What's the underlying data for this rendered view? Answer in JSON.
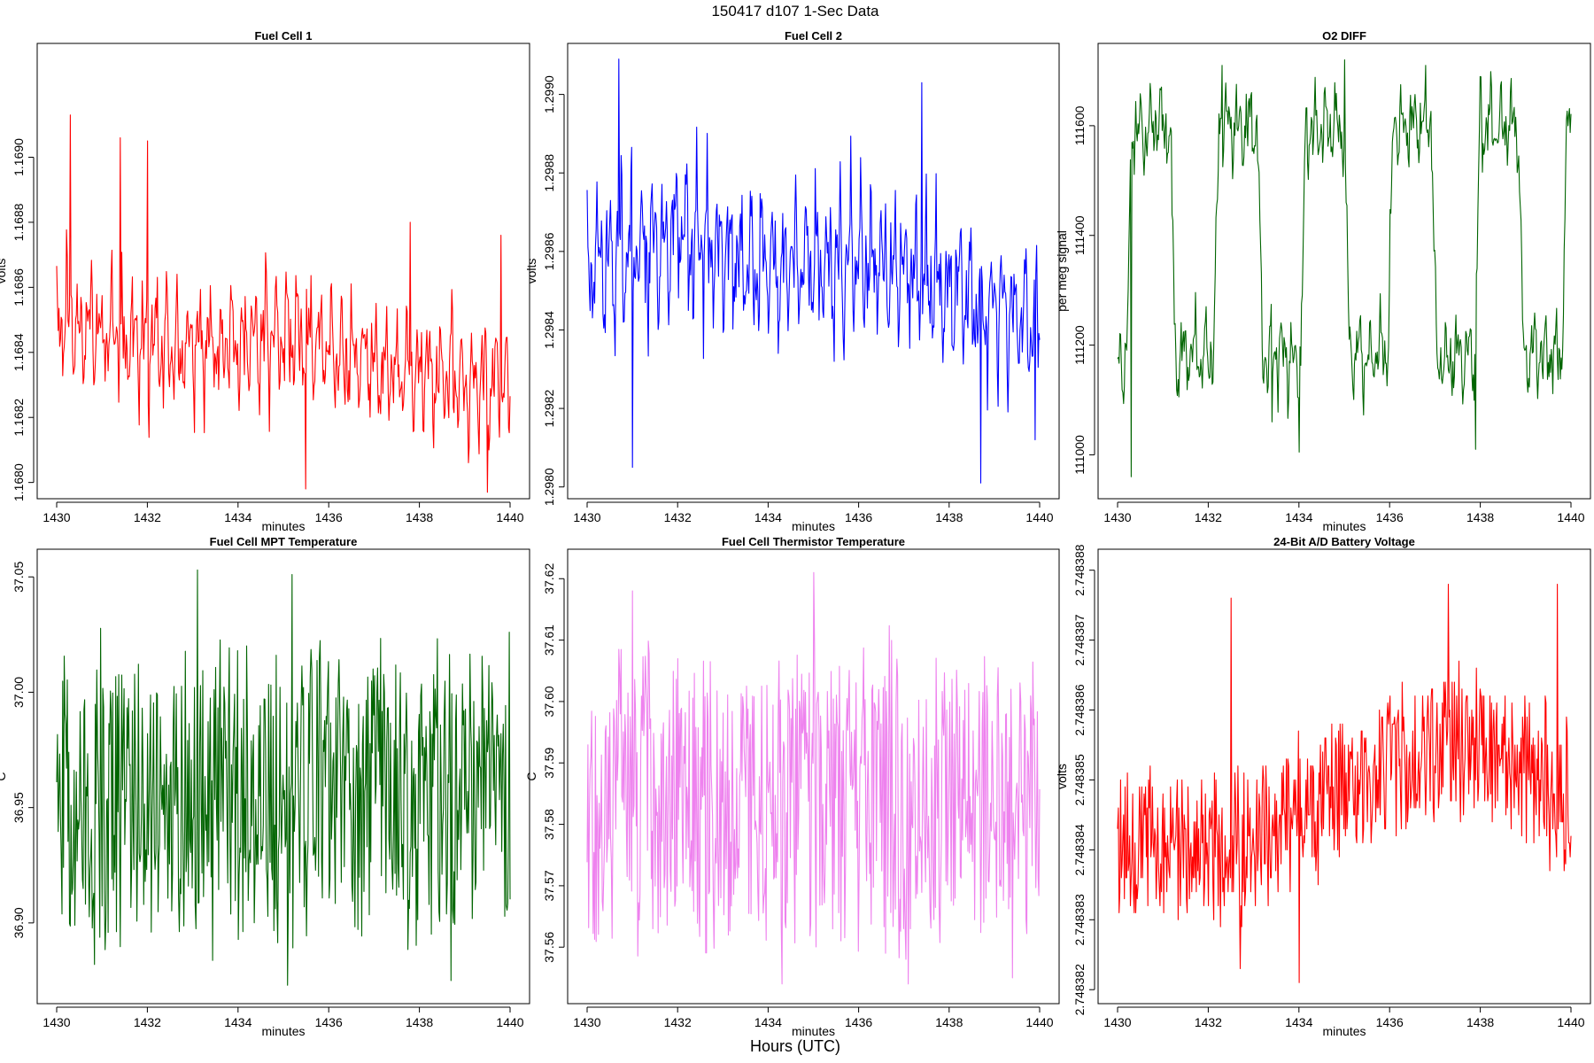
{
  "figure": {
    "title": "150417   d107   1-Sec Data",
    "xlabel": "Hours (UTC)"
  },
  "chart_data": [
    {
      "type": "line",
      "title": "Fuel Cell 1",
      "xlabel": "minutes",
      "ylabel": "volts",
      "color": "#ff0000",
      "xlim": [
        1430,
        1440
      ],
      "ylim": [
        1.16795,
        1.16935
      ],
      "xticks": [
        "1430",
        "1432",
        "1434",
        "1436",
        "1438",
        "1440"
      ],
      "yticks": [
        "1.1680",
        "1.1682",
        "1.1684",
        "1.1686",
        "1.1688",
        "1.1690"
      ],
      "seed": 11,
      "n": 600,
      "trend": [
        [
          0,
          1.1685
        ],
        [
          0.25,
          1.1684
        ],
        [
          0.5,
          1.16845
        ],
        [
          0.75,
          1.16835
        ],
        [
          1,
          1.1683
        ]
      ],
      "amp": 0.00022,
      "spikes": [
        [
          0.03,
          1.16913
        ],
        [
          0.14,
          1.16906
        ],
        [
          0.2,
          1.16905
        ],
        [
          0.55,
          1.16798
        ],
        [
          0.78,
          1.1688
        ],
        [
          0.95,
          1.16797
        ],
        [
          0.98,
          1.16876
        ]
      ],
      "ymin_clip": 1.16797,
      "ymax_clip": 1.16913
    },
    {
      "type": "line",
      "title": "Fuel Cell 2",
      "xlabel": "minutes",
      "ylabel": "volts",
      "color": "#0000ff",
      "xlim": [
        1430,
        1440
      ],
      "ylim": [
        1.29797,
        1.29913
      ],
      "xticks": [
        "1430",
        "1432",
        "1434",
        "1436",
        "1438",
        "1440"
      ],
      "yticks": [
        "1.2980",
        "1.2982",
        "1.2984",
        "1.2986",
        "1.2988",
        "1.2990"
      ],
      "seed": 23,
      "n": 600,
      "trend": [
        [
          0,
          1.29858
        ],
        [
          0.2,
          1.29865
        ],
        [
          0.4,
          1.29855
        ],
        [
          0.6,
          1.29858
        ],
        [
          0.8,
          1.2985
        ],
        [
          1,
          1.29842
        ]
      ],
      "amp": 0.00024,
      "spikes": [
        [
          0.07,
          1.29909
        ],
        [
          0.1,
          1.29805
        ],
        [
          0.87,
          1.29801
        ],
        [
          0.74,
          1.29903
        ],
        [
          0.99,
          1.29812
        ]
      ],
      "ymin_clip": 1.29801,
      "ymax_clip": 1.29909
    },
    {
      "type": "line",
      "title": "O2 DIFF",
      "xlabel": "minutes",
      "ylabel": "per meg signal",
      "color": "#006400",
      "xlim": [
        1430,
        1440
      ],
      "ylim": [
        110920,
        111750
      ],
      "xticks": [
        "1430",
        "1432",
        "1434",
        "1436",
        "1438",
        "1440"
      ],
      "yticks": [
        "111000",
        "111200",
        "111400",
        "111600"
      ],
      "seed": 37,
      "n": 600,
      "square": {
        "low": 111180,
        "high": 111600,
        "period": 0.192,
        "phase": 0.02,
        "duty": 0.5
      },
      "amp": 90,
      "spikes": [
        [
          0.03,
          110960
        ],
        [
          0.23,
          111710
        ],
        [
          0.5,
          111720
        ],
        [
          0.4,
          111005
        ],
        [
          0.68,
          111710
        ],
        [
          0.79,
          111010
        ],
        [
          0.34,
          111060
        ]
      ],
      "ymin_clip": 110960,
      "ymax_clip": 111720
    },
    {
      "type": "line",
      "title": "Fuel Cell MPT Temperature",
      "xlabel": "minutes",
      "ylabel": "C",
      "color": "#006400",
      "xlim": [
        1430,
        1440
      ],
      "ylim": [
        36.865,
        37.062
      ],
      "xticks": [
        "1430",
        "1432",
        "1434",
        "1436",
        "1438",
        "1440"
      ],
      "yticks": [
        "36.90",
        "36.95",
        "37.00",
        "37.05"
      ],
      "seed": 51,
      "n": 600,
      "trend": [
        [
          0,
          36.955
        ],
        [
          1,
          36.955
        ]
      ],
      "amp": 0.075,
      "noise": true,
      "spikes": [
        [
          0.31,
          37.053
        ],
        [
          0.52,
          37.051
        ],
        [
          0.51,
          36.873
        ],
        [
          0.87,
          36.875
        ]
      ],
      "ymin_clip": 36.873,
      "ymax_clip": 37.053
    },
    {
      "type": "line",
      "title": "Fuel Cell Thermistor Temperature",
      "xlabel": "minutes",
      "ylabel": "C",
      "color": "#ee82ee",
      "xlim": [
        1430,
        1440
      ],
      "ylim": [
        37.5508,
        37.6248
      ],
      "xticks": [
        "1430",
        "1432",
        "1434",
        "1436",
        "1438",
        "1440"
      ],
      "yticks": [
        "37.56",
        "37.57",
        "37.58",
        "37.59",
        "37.60",
        "37.61",
        "37.62"
      ],
      "seed": 67,
      "n": 600,
      "trend": [
        [
          0,
          37.585
        ],
        [
          1,
          37.585
        ]
      ],
      "amp": 0.028,
      "noise": true,
      "spikes": [
        [
          0.5,
          37.621
        ],
        [
          0.43,
          37.554
        ],
        [
          0.71,
          37.554
        ],
        [
          0.94,
          37.555
        ],
        [
          0.1,
          37.618
        ]
      ],
      "ymin_clip": 37.554,
      "ymax_clip": 37.621
    },
    {
      "type": "line",
      "title": "24-Bit A/D Battery Voltage",
      "xlabel": "minutes",
      "ylabel": "volts",
      "color": "#ff0000",
      "xlim": [
        1430,
        1440
      ],
      "ylim": [
        2.7483818,
        2.7483883
      ],
      "xticks": [
        "1430",
        "1432",
        "1434",
        "1436",
        "1438",
        "1440"
      ],
      "yticks": [
        "2.748382",
        "2.748383",
        "2.748384",
        "2.748385",
        "2.748386",
        "2.748387",
        "2.748388"
      ],
      "seed": 79,
      "n": 600,
      "trend": [
        [
          0,
          2.7483842
        ],
        [
          0.2,
          2.748384
        ],
        [
          0.4,
          2.7483845
        ],
        [
          0.6,
          2.7483852
        ],
        [
          0.8,
          2.7483855
        ],
        [
          1,
          2.7483847
        ]
      ],
      "amp": 1.3e-06,
      "noise": true,
      "quantize": 1e-07,
      "spikes": [
        [
          0.25,
          2.7483876
        ],
        [
          0.27,
          2.7483823
        ],
        [
          0.4,
          2.7483821
        ],
        [
          0.73,
          2.7483878
        ],
        [
          0.97,
          2.7483878
        ]
      ],
      "ymin_clip": 2.7483821,
      "ymax_clip": 2.7483878
    }
  ]
}
